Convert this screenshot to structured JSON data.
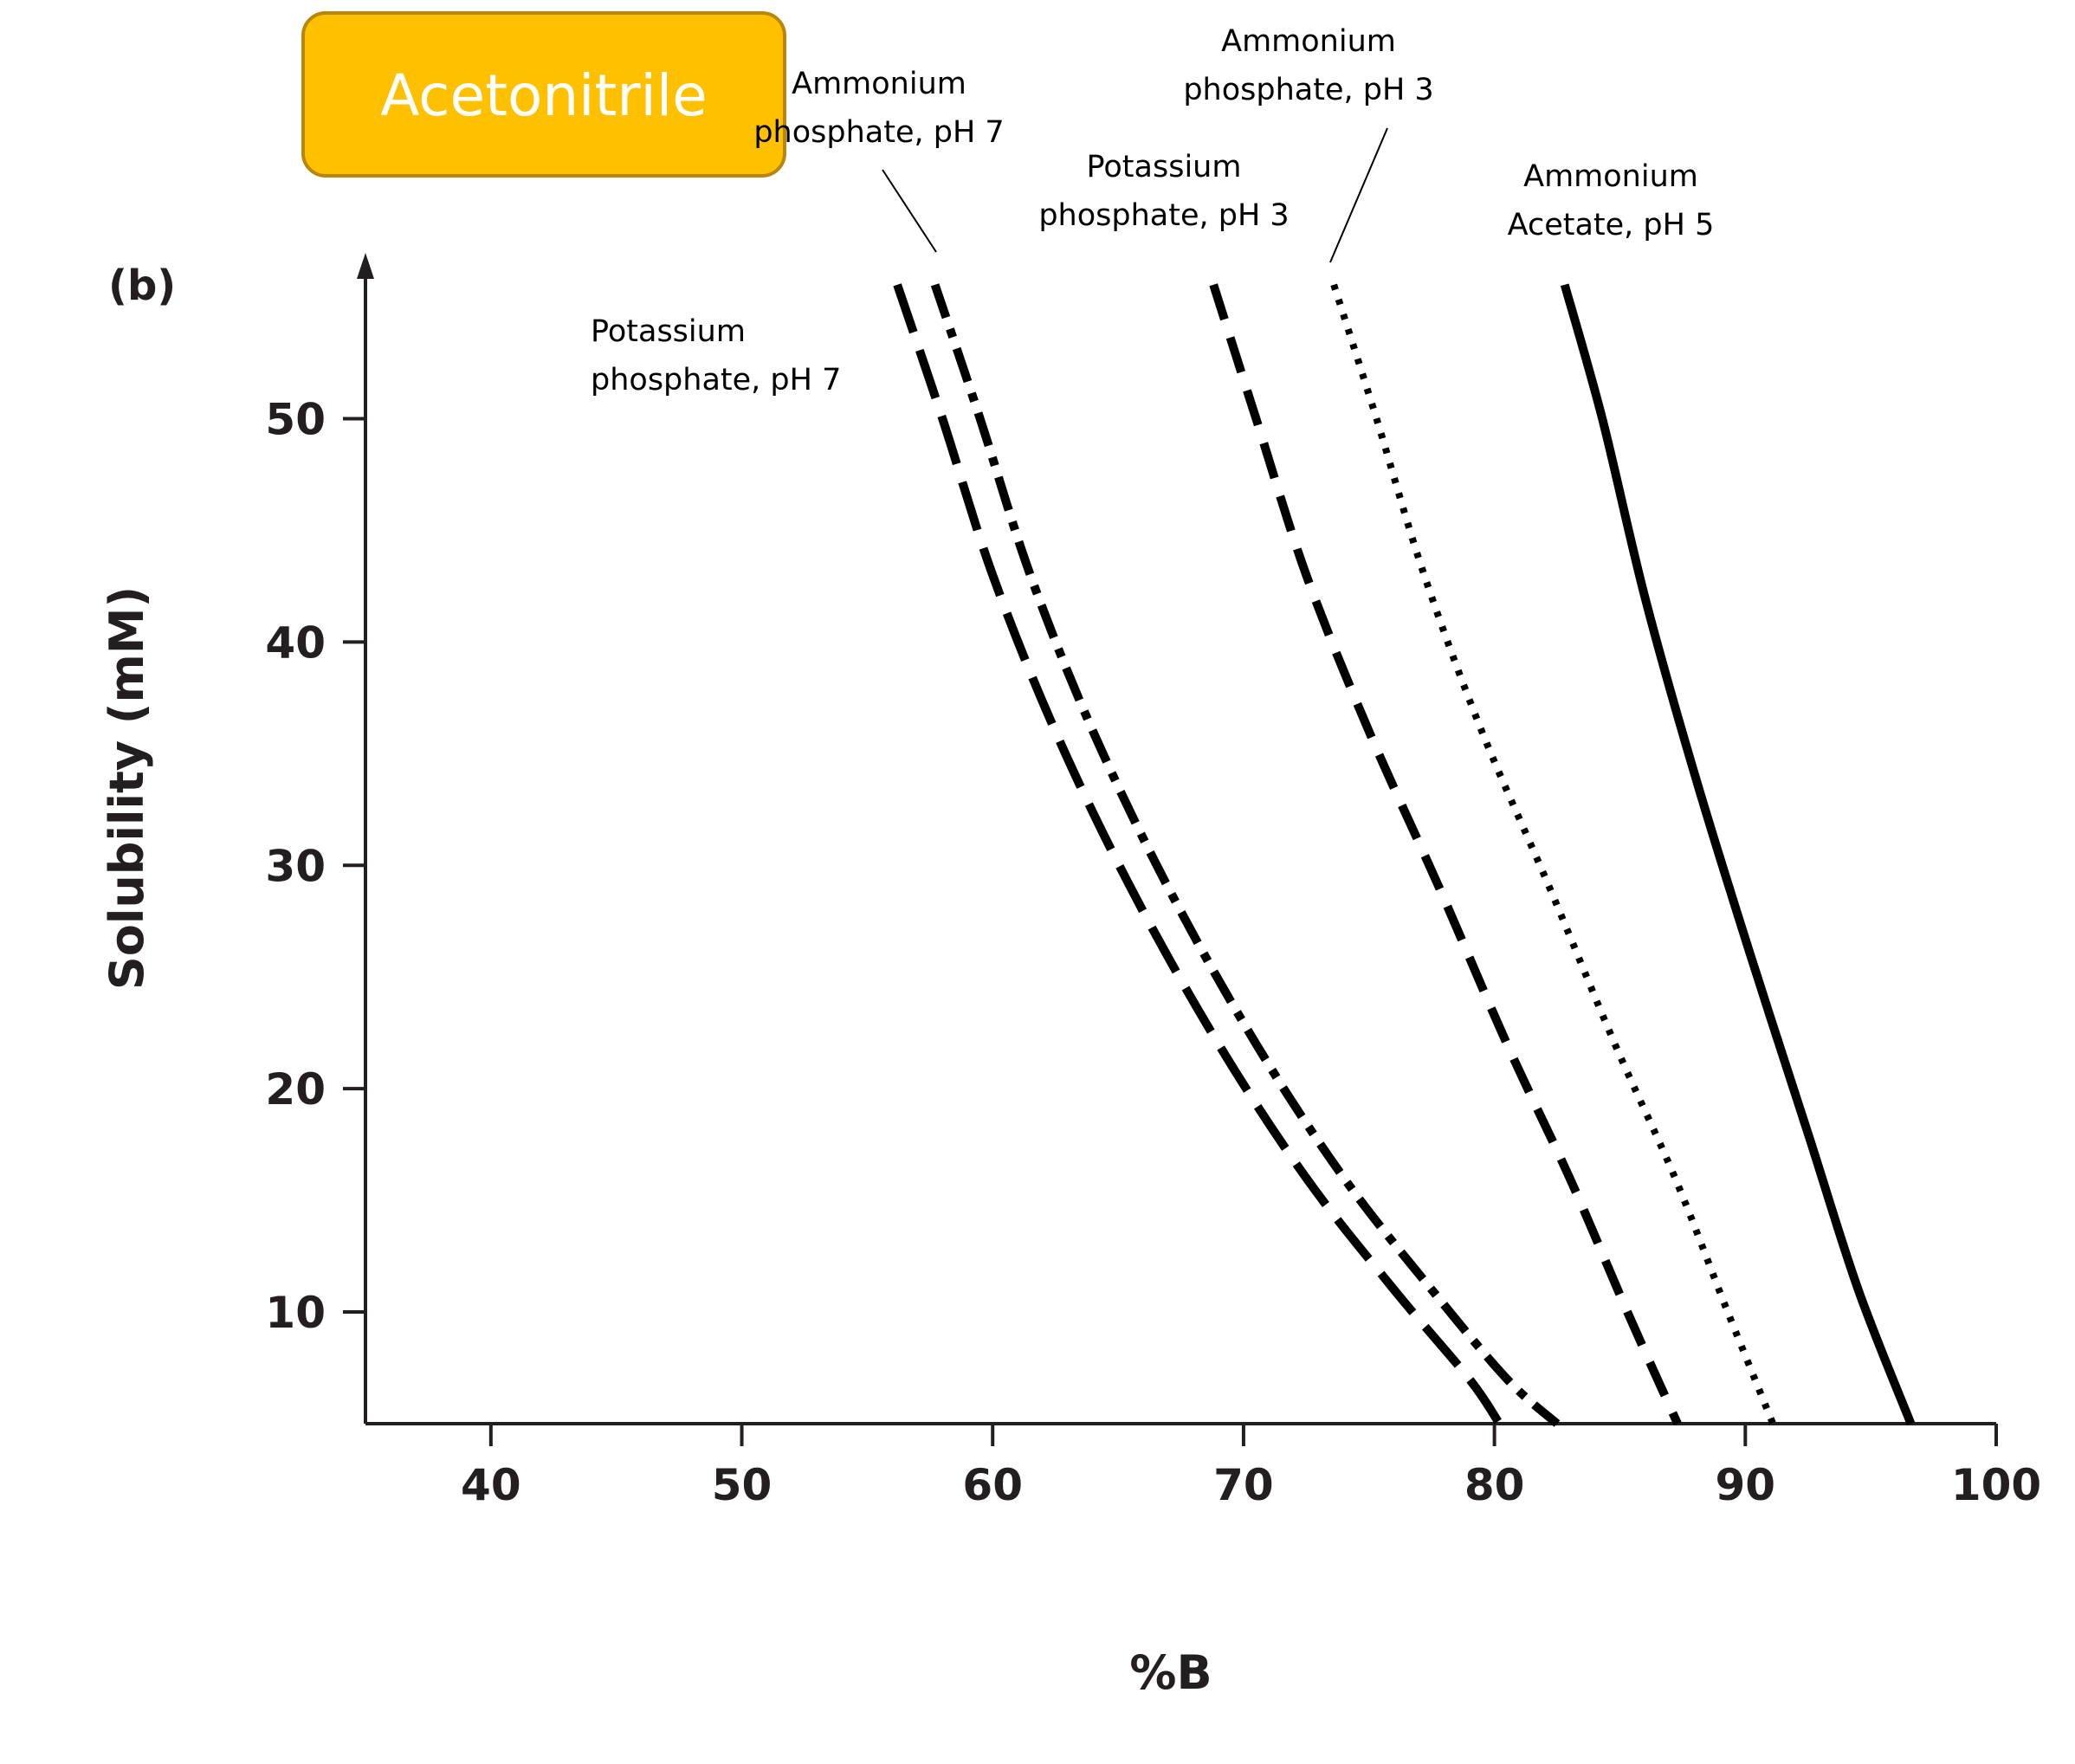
{
  "badge": {
    "text": "Acetonitrile",
    "color": "#FFC000",
    "border_color": "#B8860B"
  },
  "chart_data": {
    "type": "line",
    "panel_label": "(b)",
    "xlabel": "%B",
    "ylabel": "Solubility (mM)",
    "xlim": [
      35,
      100
    ],
    "ylim": [
      5,
      57
    ],
    "xticks": [
      40,
      50,
      60,
      70,
      80,
      90,
      100
    ],
    "yticks": [
      10,
      20,
      30,
      40,
      50
    ],
    "grid": false,
    "legend": "none",
    "series": [
      {
        "name": "Potassium phosphate, pH 7",
        "label_lines": [
          "Potassium",
          "phosphate, pH 7"
        ],
        "style": "long-dash",
        "x": [
          56.2,
          58.0,
          60.0,
          62.5,
          65.5,
          69.0,
          72.5,
          76.0,
          79.0,
          80.2
        ],
        "y": [
          56,
          50,
          43,
          36,
          29,
          22,
          16,
          11,
          7,
          5
        ]
      },
      {
        "name": "Ammonium phosphate, pH 7",
        "label_lines": [
          "Ammonium",
          "phosphate, pH 7"
        ],
        "style": "dash-dot",
        "x": [
          57.7,
          59.5,
          61.5,
          64.0,
          67.0,
          70.5,
          74.0,
          77.5,
          80.5,
          82.5
        ],
        "y": [
          56,
          50,
          43,
          36,
          29,
          22,
          16,
          11,
          7,
          5
        ]
      },
      {
        "name": "Potassium phosphate, pH 3",
        "label_lines": [
          "Potassium",
          "phosphate, pH 3"
        ],
        "style": "dash",
        "x": [
          68.8,
          70.5,
          72.5,
          75.0,
          77.8,
          80.5,
          83.0,
          85.3,
          87.3
        ],
        "y": [
          56,
          50,
          43,
          36,
          29,
          22,
          16,
          10,
          5
        ]
      },
      {
        "name": "Ammonium phosphate, pH 3",
        "label_lines": [
          "Ammonium",
          "phosphate, pH 3"
        ],
        "style": "dotted",
        "x": [
          73.6,
          75.3,
          77.2,
          79.5,
          82.2,
          84.8,
          87.2,
          89.3,
          91.1
        ],
        "y": [
          56,
          50,
          43,
          36,
          29,
          22,
          16,
          10,
          5
        ]
      },
      {
        "name": "Ammonium Acetate, pH 5",
        "label_lines": [
          "Ammonium",
          "Acetate, pH 5"
        ],
        "style": "solid",
        "x": [
          82.8,
          84.3,
          86.0,
          88.0,
          90.2,
          92.5,
          94.5,
          96.6
        ],
        "y": [
          56,
          50,
          42,
          34,
          26,
          18,
          11,
          5
        ]
      }
    ]
  }
}
